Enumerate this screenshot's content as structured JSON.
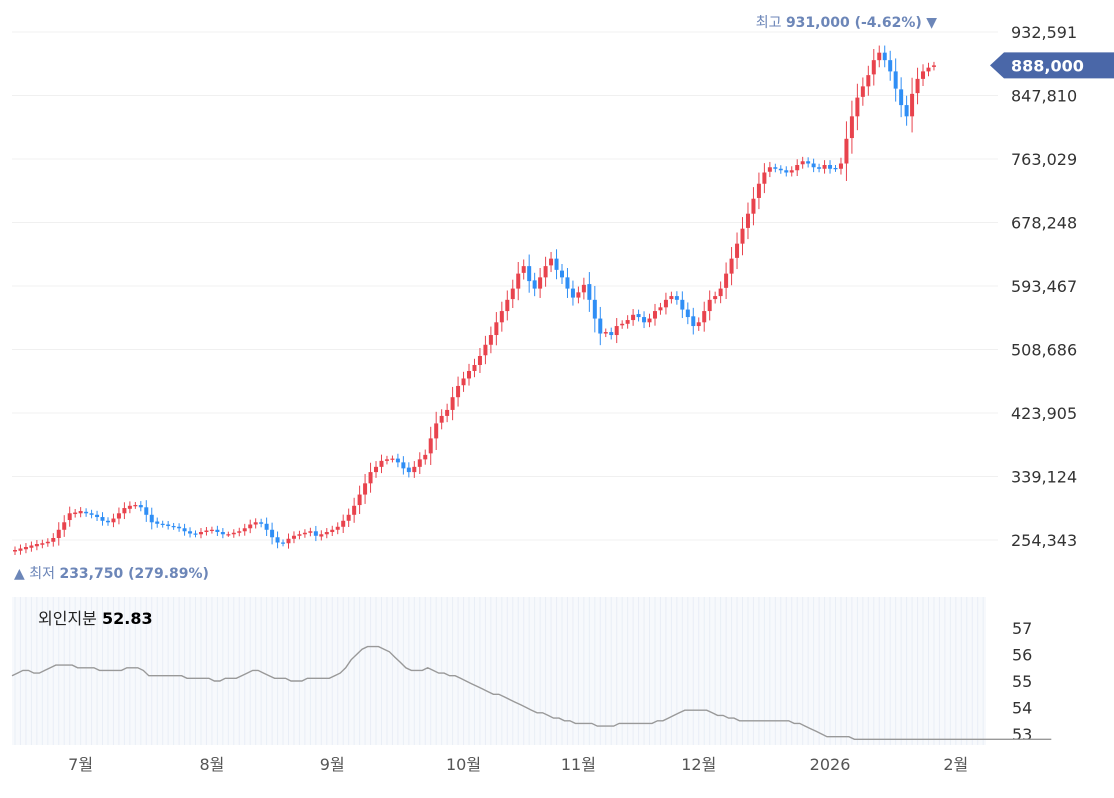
{
  "colors": {
    "up": "#e8434d",
    "down": "#2f8ef5",
    "current_tag": "#4a67a8",
    "annotation": "#6c86b8",
    "indicator_line": "#999999"
  },
  "chart_data": [
    {
      "type": "candlestick",
      "y_ticks": [
        "932,591",
        "847,810",
        "763,029",
        "678,248",
        "593,467",
        "508,686",
        "423,905",
        "339,124",
        "254,343"
      ],
      "y_tick_values": [
        932591,
        847810,
        763029,
        678248,
        593467,
        508686,
        423905,
        339124,
        254343
      ],
      "current_price_label": "888,000",
      "current_price": 888000,
      "high_annotation": {
        "prefix": "최고",
        "value": "931,000 (-4.62%)",
        "marker": "▼",
        "price": 931000
      },
      "low_annotation": {
        "prefix": "최저",
        "value": "233,750 (279.89%)",
        "marker": "▲",
        "price": 233750
      },
      "x_labels": [
        "7월",
        "8월",
        "9월",
        "10월",
        "11월",
        "12월",
        "2026",
        "2월"
      ],
      "x_label_index": [
        12,
        36,
        58,
        82,
        103,
        125,
        149,
        172
      ],
      "grid": true,
      "close": [
        241000,
        243000,
        245000,
        247000,
        249000,
        250000,
        252000,
        257000,
        268000,
        278000,
        290000,
        291000,
        293000,
        290000,
        288000,
        285000,
        280000,
        278000,
        283000,
        290000,
        297000,
        300000,
        301000,
        298000,
        288000,
        278000,
        276000,
        275000,
        273000,
        272000,
        270000,
        266000,
        263000,
        262000,
        265000,
        267000,
        268000,
        265000,
        262000,
        262000,
        264000,
        266000,
        270000,
        275000,
        278000,
        276000,
        268000,
        258000,
        251000,
        250000,
        256000,
        260000,
        262000,
        264000,
        266000,
        260000,
        262000,
        265000,
        268000,
        272000,
        280000,
        288000,
        300000,
        315000,
        330000,
        345000,
        352000,
        360000,
        362000,
        363000,
        358000,
        350000,
        345000,
        352000,
        362000,
        368000,
        390000,
        410000,
        420000,
        428000,
        445000,
        460000,
        470000,
        480000,
        488000,
        500000,
        515000,
        528000,
        545000,
        560000,
        575000,
        590000,
        610000,
        620000,
        600000,
        590000,
        605000,
        620000,
        630000,
        615000,
        605000,
        590000,
        578000,
        585000,
        595000,
        575000,
        550000,
        530000,
        532000,
        528000,
        540000,
        543000,
        548000,
        555000,
        552000,
        545000,
        550000,
        560000,
        565000,
        575000,
        580000,
        575000,
        562000,
        552000,
        540000,
        545000,
        560000,
        575000,
        580000,
        590000,
        610000,
        630000,
        650000,
        670000,
        690000,
        710000,
        730000,
        745000,
        752000,
        750000,
        748000,
        745000,
        748000,
        755000,
        760000,
        757000,
        752000,
        750000,
        755000,
        750000,
        750000,
        757000,
        790000,
        820000,
        845000,
        860000,
        875000,
        895000,
        905000,
        895000,
        880000,
        857000,
        835000,
        820000,
        850000,
        870000,
        880000,
        885000,
        888000
      ],
      "open": [
        239000,
        240000,
        242000,
        244000,
        246000,
        248000,
        250000,
        252000,
        257000,
        268000,
        281000,
        289000,
        290000,
        292000,
        290000,
        288000,
        285000,
        280000,
        278000,
        283000,
        290000,
        296000,
        300000,
        301000,
        298000,
        288000,
        279000,
        276000,
        275000,
        273000,
        272000,
        270000,
        266000,
        263000,
        262000,
        265000,
        267000,
        268000,
        265000,
        262000,
        262000,
        264000,
        266000,
        270000,
        275000,
        278000,
        276000,
        268000,
        258000,
        251000,
        250000,
        256000,
        260000,
        262000,
        264000,
        266000,
        259000,
        262000,
        265000,
        268000,
        272000,
        280000,
        288000,
        301000,
        315000,
        330000,
        345000,
        352000,
        360000,
        362000,
        363000,
        358000,
        351000,
        345000,
        352000,
        362000,
        370000,
        390000,
        411000,
        420000,
        428000,
        445000,
        461000,
        470000,
        480000,
        488000,
        501000,
        515000,
        528000,
        545000,
        560000,
        576000,
        590000,
        611000,
        620000,
        601000,
        590000,
        605000,
        621000,
        630000,
        614000,
        605000,
        590000,
        578000,
        585000,
        596000,
        575000,
        550000,
        530000,
        532000,
        528000,
        541000,
        543000,
        548000,
        556000,
        552000,
        545000,
        550000,
        561000,
        565000,
        576000,
        580000,
        575000,
        562000,
        553000,
        540000,
        545000,
        560000,
        576000,
        580000,
        591000,
        610000,
        631000,
        650000,
        671000,
        690000,
        711000,
        730000,
        746000,
        752000,
        750000,
        748000,
        745000,
        748000,
        756000,
        760000,
        757000,
        752000,
        750000,
        755000,
        751000,
        750000,
        757000,
        791000,
        820000,
        846000,
        860000,
        876000,
        895000,
        905000,
        895000,
        880000,
        856000,
        835000,
        820000,
        851000,
        870000,
        880000,
        886000
      ]
    },
    {
      "type": "line",
      "title": "외인지분",
      "value": "52.83",
      "y_ticks": [
        "57",
        "56",
        "55",
        "54",
        "53"
      ],
      "y_tick_values": [
        57,
        56,
        55,
        54,
        53
      ],
      "ylim": [
        52.6,
        57.3
      ],
      "values": [
        55.2,
        55.3,
        55.4,
        55.4,
        55.3,
        55.3,
        55.4,
        55.5,
        55.6,
        55.6,
        55.6,
        55.6,
        55.5,
        55.5,
        55.5,
        55.5,
        55.4,
        55.4,
        55.4,
        55.4,
        55.4,
        55.5,
        55.5,
        55.5,
        55.4,
        55.2,
        55.2,
        55.2,
        55.2,
        55.2,
        55.2,
        55.2,
        55.1,
        55.1,
        55.1,
        55.1,
        55.1,
        55.0,
        55.0,
        55.1,
        55.1,
        55.1,
        55.2,
        55.3,
        55.4,
        55.4,
        55.3,
        55.2,
        55.1,
        55.1,
        55.1,
        55.0,
        55.0,
        55.0,
        55.1,
        55.1,
        55.1,
        55.1,
        55.1,
        55.2,
        55.3,
        55.5,
        55.8,
        56.0,
        56.2,
        56.3,
        56.3,
        56.3,
        56.2,
        56.1,
        55.9,
        55.7,
        55.5,
        55.4,
        55.4,
        55.4,
        55.5,
        55.4,
        55.3,
        55.3,
        55.2,
        55.2,
        55.1,
        55.0,
        54.9,
        54.8,
        54.7,
        54.6,
        54.5,
        54.5,
        54.4,
        54.3,
        54.2,
        54.1,
        54.0,
        53.9,
        53.8,
        53.8,
        53.7,
        53.6,
        53.6,
        53.5,
        53.5,
        53.4,
        53.4,
        53.4,
        53.4,
        53.3,
        53.3,
        53.3,
        53.3,
        53.4,
        53.4,
        53.4,
        53.4,
        53.4,
        53.4,
        53.4,
        53.5,
        53.5,
        53.6,
        53.7,
        53.8,
        53.9,
        53.9,
        53.9,
        53.9,
        53.9,
        53.8,
        53.7,
        53.7,
        53.6,
        53.6,
        53.5,
        53.5,
        53.5,
        53.5,
        53.5,
        53.5,
        53.5,
        53.5,
        53.5,
        53.5,
        53.4,
        53.4,
        53.3,
        53.2,
        53.1,
        53.0,
        52.9,
        52.9,
        52.9,
        52.9,
        52.9,
        52.8,
        52.8,
        52.8,
        52.8,
        52.8,
        52.8,
        52.8,
        52.8,
        52.8,
        52.8,
        52.8,
        52.8,
        52.8,
        52.8,
        52.8,
        52.8,
        52.8,
        52.8,
        52.8,
        52.8,
        52.8,
        52.8,
        52.8,
        52.8,
        52.8,
        52.8,
        52.8,
        52.8,
        52.8,
        52.8,
        52.8,
        52.8,
        52.8,
        52.8,
        52.8,
        52.8,
        52.8
      ]
    }
  ]
}
